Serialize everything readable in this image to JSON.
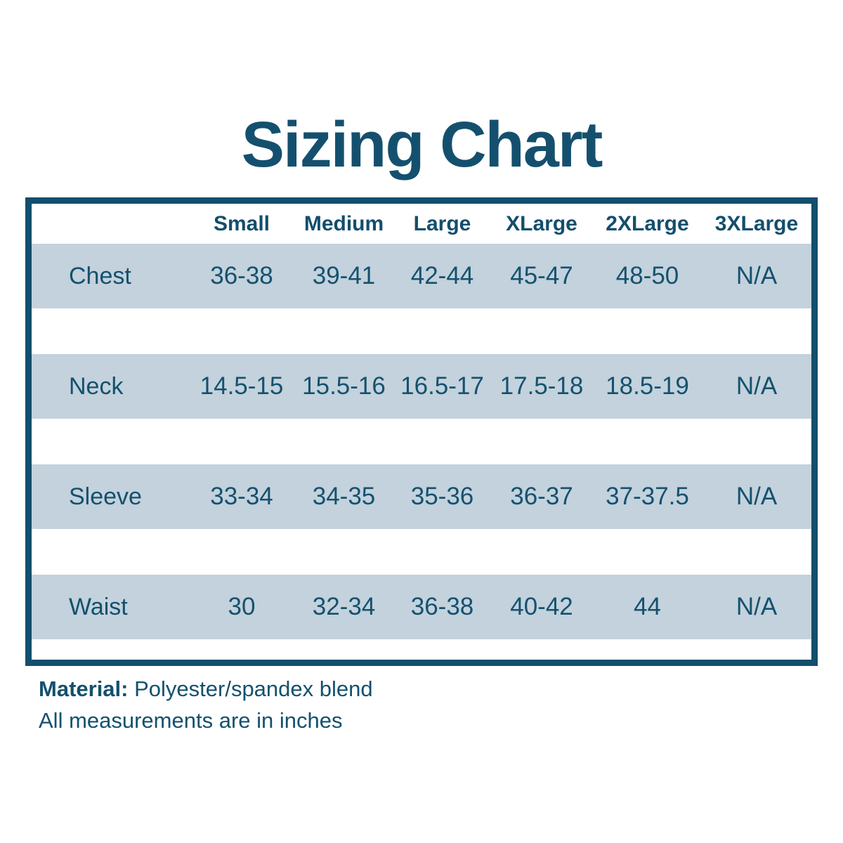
{
  "title": "Sizing Chart",
  "chart_data": {
    "type": "table",
    "title": "Sizing Chart",
    "columns": [
      "Small",
      "Medium",
      "Large",
      "XLarge",
      "2XLarge",
      "3XLarge"
    ],
    "rows": [
      {
        "label": "Chest",
        "values": [
          "36-38",
          "39-41",
          "42-44",
          "45-47",
          "48-50",
          "N/A"
        ]
      },
      {
        "label": "Neck",
        "values": [
          "14.5-15",
          "15.5-16",
          "16.5-17",
          "17.5-18",
          "18.5-19",
          "N/A"
        ]
      },
      {
        "label": "Sleeve",
        "values": [
          "33-34",
          "34-35",
          "35-36",
          "36-37",
          "37-37.5",
          "N/A"
        ]
      },
      {
        "label": "Waist",
        "values": [
          "30",
          "32-34",
          "36-38",
          "40-42",
          "44",
          "N/A"
        ]
      }
    ],
    "units": "inches"
  },
  "footer": {
    "material_label": "Material:",
    "material_value": "Polyester/spandex blend",
    "note": "All measurements are in inches"
  },
  "colors": {
    "text": "#14506e",
    "border": "#134e6d",
    "row_band": "#c3d2dc",
    "background": "#ffffff"
  }
}
